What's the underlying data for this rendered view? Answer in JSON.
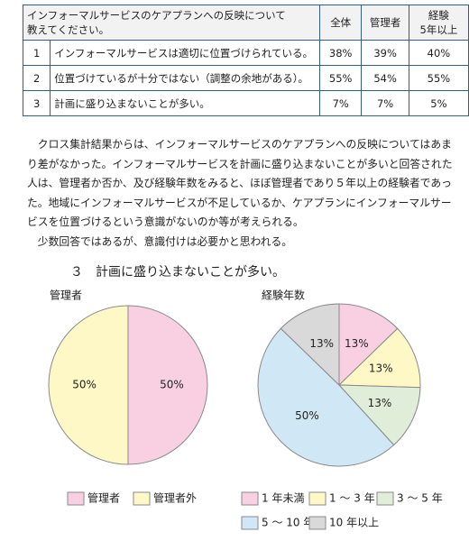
{
  "table": {
    "header": {
      "question": [
        "インフォーマルサービスのケアプランへの反映について",
        "教えてください。"
      ],
      "columns": [
        [
          "全体"
        ],
        [
          "管理者"
        ],
        [
          "経験",
          "5年以上"
        ]
      ]
    },
    "rows": [
      [
        "1",
        "インフォーマルサービスは適切に位置づけられている。",
        "38%",
        "39%",
        "40%"
      ],
      [
        "2",
        "位置づけているが十分ではない（調整の余地がある）。",
        "55%",
        "54%",
        "55%"
      ],
      [
        "3",
        "計画に盛り込まないことが多い。",
        "7%",
        "7%",
        "5%"
      ]
    ]
  },
  "paragraphs": [
    [
      "　クロス集計結果からは、インフォーマルサービスのケアプランへの反映についてはあま",
      "り差がなかった。インフォーマルサービスを計画に盛り込まないことが多いと回答された",
      "人は、管理者か否か、及び経験年数をみると、ほぼ管理者であり５年以上の経験者であっ",
      "た。地域にインフォーマルサービスが不足しているか、ケアプランにインフォーマルサー",
      "ビスを位置づけるという意識がないのか等が考えられる。"
    ],
    [
      "　少数回答ではあるが、意識付けは必要かと思われる。"
    ]
  ],
  "section_heading": "３　計画に盛り込まないことが多い。",
  "chart_data": [
    {
      "type": "pie",
      "title": "管理者",
      "categories": [
        "管理者",
        "管理者外"
      ],
      "values": [
        50,
        50
      ],
      "value_labels": [
        "50%",
        "50%"
      ],
      "colors": [
        "#f9d0e2",
        "#fdf8c6"
      ]
    },
    {
      "type": "pie",
      "title": "経験年数",
      "categories": [
        "1 年未満",
        "1 ～ 3 年",
        "3 ～ 5 年",
        "5 ～ 10 年",
        "10 年以上"
      ],
      "values": [
        13,
        13,
        13,
        50,
        13
      ],
      "value_labels": [
        "13%",
        "13%",
        "13%",
        "50%",
        "13%"
      ],
      "colors": [
        "#f9d0e2",
        "#fdf8c6",
        "#e0eed9",
        "#d0e7f6",
        "#d9d9d9"
      ]
    }
  ]
}
